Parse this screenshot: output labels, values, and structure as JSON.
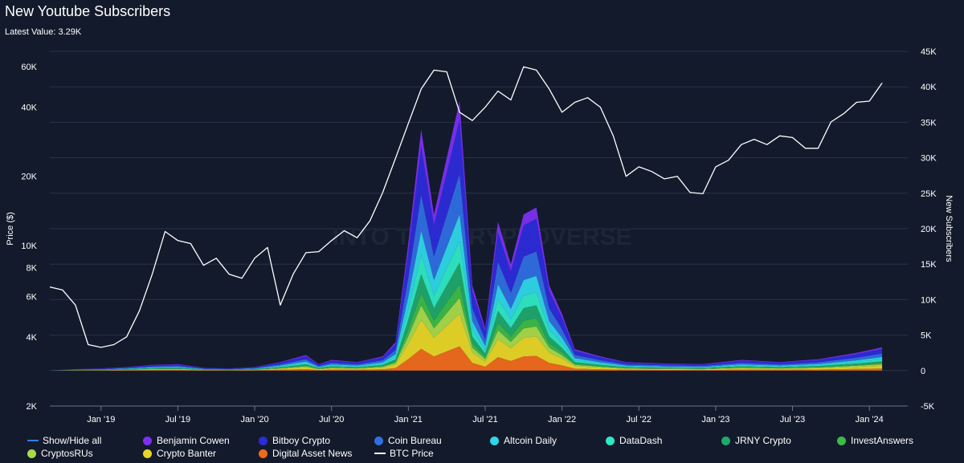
{
  "header": {
    "title": "New Youtube Subscribers",
    "latest_label": "Latest Value:",
    "latest_value": "3.29K"
  },
  "chart_data": {
    "type": "area",
    "title": "New Youtube Subscribers",
    "x_axis": {
      "tick_labels": [
        "Jan '19",
        "Jul '19",
        "Jan '20",
        "Jul '20",
        "Jan '21",
        "Jul '21",
        "Jan '22",
        "Jul '22",
        "Jan '23",
        "Jul '23",
        "Jan '24"
      ],
      "range": [
        "2018-09",
        "2024-04"
      ]
    },
    "y_left": {
      "label": "Price ($)",
      "scale": "log",
      "tick_labels": [
        "2K",
        "4K",
        "6K",
        "8K",
        "10K",
        "20K",
        "40K",
        "60K"
      ],
      "tick_values": [
        2000,
        4000,
        6000,
        8000,
        10000,
        20000,
        40000,
        60000
      ],
      "range": [
        2000,
        70000
      ]
    },
    "y_right": {
      "label": "New Subscribers",
      "tick_labels": [
        "-5K",
        "0",
        "5K",
        "10K",
        "15K",
        "20K",
        "25K",
        "30K",
        "35K",
        "40K",
        "45K"
      ],
      "tick_values": [
        -5000,
        0,
        5000,
        10000,
        15000,
        20000,
        25000,
        30000,
        35000,
        40000,
        45000
      ],
      "range": [
        -5000,
        45000
      ]
    },
    "grid": true,
    "watermark": "INTO THE CRYPTOVERSE",
    "btc_price": {
      "name": "BTC Price",
      "x": [
        "2018-09",
        "2018-10",
        "2018-11",
        "2018-12",
        "2019-01",
        "2019-02",
        "2019-03",
        "2019-04",
        "2019-05",
        "2019-06",
        "2019-07",
        "2019-08",
        "2019-09",
        "2019-10",
        "2019-11",
        "2019-12",
        "2020-01",
        "2020-02",
        "2020-03",
        "2020-04",
        "2020-05",
        "2020-06",
        "2020-07",
        "2020-08",
        "2020-09",
        "2020-10",
        "2020-11",
        "2020-12",
        "2021-01",
        "2021-02",
        "2021-03",
        "2021-04",
        "2021-05",
        "2021-06",
        "2021-07",
        "2021-08",
        "2021-09",
        "2021-10",
        "2021-11",
        "2021-12",
        "2022-01",
        "2022-02",
        "2022-03",
        "2022-04",
        "2022-05",
        "2022-06",
        "2022-07",
        "2022-08",
        "2022-09",
        "2022-10",
        "2022-11",
        "2022-12",
        "2023-01",
        "2023-02",
        "2023-03",
        "2023-04",
        "2023-05",
        "2023-06",
        "2023-07",
        "2023-08",
        "2023-09",
        "2023-10",
        "2023-11",
        "2023-12",
        "2024-01",
        "2024-02"
      ],
      "values": [
        6600,
        6400,
        5500,
        3700,
        3600,
        3700,
        4000,
        5200,
        7500,
        11500,
        10500,
        10200,
        8200,
        8800,
        7500,
        7200,
        8800,
        9800,
        5500,
        7500,
        9300,
        9400,
        10500,
        11600,
        10800,
        12800,
        17000,
        24000,
        34000,
        48000,
        58000,
        57000,
        38000,
        35000,
        40000,
        47000,
        43000,
        60000,
        58000,
        48000,
        38000,
        42000,
        44000,
        40000,
        30000,
        20000,
        22000,
        21000,
        19500,
        20000,
        17000,
        16800,
        22000,
        23500,
        27500,
        29000,
        27500,
        30000,
        29500,
        26500,
        26500,
        34500,
        37500,
        42000,
        42500,
        51000
      ]
    },
    "subscribers_total": {
      "x": [
        "2018-09",
        "2018-11",
        "2019-01",
        "2019-03",
        "2019-05",
        "2019-07",
        "2019-09",
        "2019-11",
        "2020-01",
        "2020-03",
        "2020-05",
        "2020-06",
        "2020-07",
        "2020-09",
        "2020-11",
        "2020-12",
        "2021-01",
        "2021-02",
        "2021-03",
        "2021-04",
        "2021-05",
        "2021-06",
        "2021-07",
        "2021-08",
        "2021-09",
        "2021-10",
        "2021-11",
        "2021-12",
        "2022-01",
        "2022-02",
        "2022-04",
        "2022-06",
        "2022-09",
        "2022-12",
        "2023-03",
        "2023-06",
        "2023-09",
        "2023-12",
        "2024-02"
      ],
      "values": [
        0,
        200,
        300,
        500,
        800,
        900,
        400,
        300,
        500,
        1200,
        2200,
        900,
        1500,
        1200,
        2000,
        4000,
        18000,
        34000,
        22000,
        30000,
        38000,
        12000,
        6000,
        21000,
        15000,
        22000,
        23000,
        12000,
        8000,
        3000,
        2000,
        1200,
        1000,
        900,
        1500,
        1200,
        1600,
        2500,
        3290
      ]
    },
    "series": [
      {
        "name": "Benjamin Cowen",
        "color": "#7b2ff2"
      },
      {
        "name": "Bitboy Crypto",
        "color": "#2c2bd9"
      },
      {
        "name": "Coin Bureau",
        "color": "#2f6fe0"
      },
      {
        "name": "Altcoin Daily",
        "color": "#2ed6e8"
      },
      {
        "name": "DataDash",
        "color": "#2ee8c4"
      },
      {
        "name": "JRNY Crypto",
        "color": "#1fa86b"
      },
      {
        "name": "InvestAnswers",
        "color": "#3dba47"
      },
      {
        "name": "CryptosRUs",
        "color": "#a8d94a"
      },
      {
        "name": "Crypto Banter",
        "color": "#e8d626"
      },
      {
        "name": "Digital Asset News",
        "color": "#f06a1c"
      }
    ],
    "series_shares": [
      0.07,
      0.2,
      0.15,
      0.1,
      0.08,
      0.08,
      0.05,
      0.06,
      0.12,
      0.09
    ]
  },
  "legend": {
    "items": [
      {
        "label": "Show/Hide all",
        "color": "#2f7fe8",
        "kind": "line"
      },
      {
        "label": "Benjamin Cowen",
        "color": "#7b2ff2",
        "kind": "dot"
      },
      {
        "label": "Bitboy Crypto",
        "color": "#2c2bd9",
        "kind": "dot"
      },
      {
        "label": "Coin Bureau",
        "color": "#2f6fe0",
        "kind": "dot"
      },
      {
        "label": "Altcoin Daily",
        "color": "#2ed6e8",
        "kind": "dot"
      },
      {
        "label": "DataDash",
        "color": "#2ee8c4",
        "kind": "dot"
      },
      {
        "label": "JRNY Crypto",
        "color": "#1fa86b",
        "kind": "dot"
      },
      {
        "label": "InvestAnswers",
        "color": "#3dba47",
        "kind": "dot"
      },
      {
        "label": "CryptosRUs",
        "color": "#a8d94a",
        "kind": "dot"
      },
      {
        "label": "Crypto Banter",
        "color": "#e8d626",
        "kind": "dot"
      },
      {
        "label": "Digital Asset News",
        "color": "#f06a1c",
        "kind": "dot"
      },
      {
        "label": "BTC Price",
        "color": "#ffffff",
        "kind": "line"
      }
    ]
  }
}
